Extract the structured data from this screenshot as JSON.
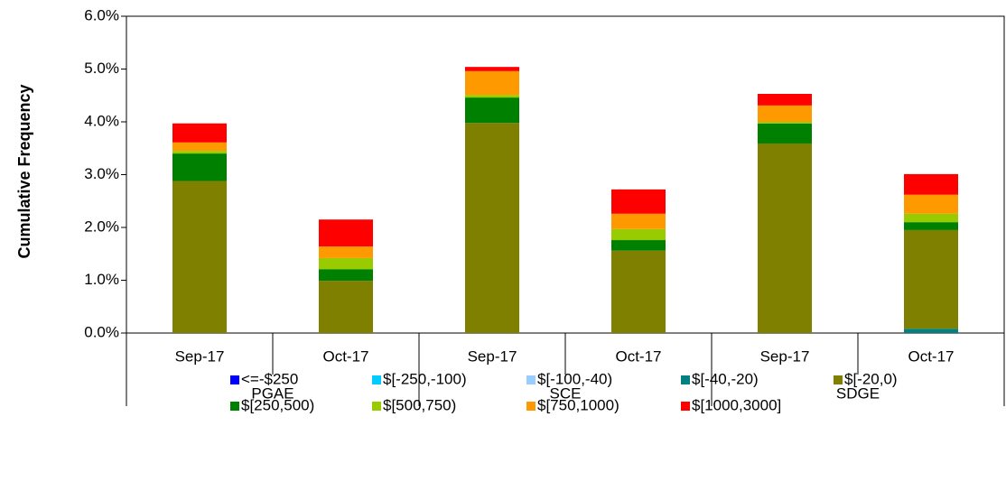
{
  "chart_data": {
    "type": "stacked_bar",
    "y_label": "Cumulative Frequency",
    "categories": [
      "Sep-17",
      "Oct-17",
      "Sep-17",
      "Oct-17",
      "Sep-17",
      "Oct-17"
    ],
    "groups": [
      "PGAE",
      "SCE",
      "SDGE"
    ],
    "ylim": [
      0,
      6
    ],
    "yticks": [
      {
        "value": 0,
        "label": "0.0%"
      },
      {
        "value": 1,
        "label": "1.0%"
      },
      {
        "value": 2,
        "label": "2.0%"
      },
      {
        "value": 3,
        "label": "3.0%"
      },
      {
        "value": 4,
        "label": "4.0%"
      },
      {
        "value": 5,
        "label": "5.0%"
      },
      {
        "value": 6,
        "label": "6.0%"
      }
    ],
    "series": [
      {
        "name": "<=-$250",
        "color": "#0000ff",
        "values": [
          0,
          0,
          0,
          0,
          0,
          0
        ]
      },
      {
        "name": "$[-250,-100)",
        "color": "#00ccff",
        "values": [
          0,
          0,
          0,
          0,
          0,
          0
        ]
      },
      {
        "name": "$[-100,-40)",
        "color": "#99ccff",
        "values": [
          0,
          0,
          0,
          0,
          0,
          0
        ]
      },
      {
        "name": "$[-40,-20)",
        "color": "#008080",
        "values": [
          0,
          0,
          0,
          0,
          0,
          0.08
        ]
      },
      {
        "name": "$[-20,0)",
        "color": "#808000",
        "values": [
          2.88,
          0.99,
          3.98,
          1.56,
          3.59,
          1.87
        ]
      },
      {
        "name": "$[250,500)",
        "color": "#008000",
        "values": [
          0.52,
          0.22,
          0.48,
          0.2,
          0.38,
          0.15
        ]
      },
      {
        "name": "$[500,750)",
        "color": "#99cc00",
        "values": [
          0.05,
          0.21,
          0.05,
          0.21,
          0.03,
          0.16
        ]
      },
      {
        "name": "$[750,1000)",
        "color": "#ff9900",
        "values": [
          0.16,
          0.22,
          0.45,
          0.29,
          0.31,
          0.36
        ]
      },
      {
        "name": "$[1000,3000]",
        "color": "#ff0000",
        "values": [
          0.36,
          0.51,
          0.08,
          0.46,
          0.22,
          0.39
        ]
      }
    ]
  }
}
